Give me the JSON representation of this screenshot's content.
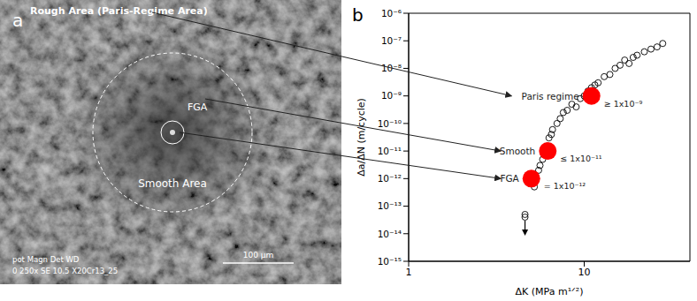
{
  "image": {
    "label": "a",
    "rough": "Rough Area (Paris-Regime Area)",
    "fga": "FGA",
    "smooth": "Smooth Area",
    "scale_bar": "100 μm",
    "info_header": "pot Magn  Det WD",
    "info_values": "0  250x  SE  10.5 X20Cr13_25"
  },
  "chart_data": {
    "panel_label": "b",
    "type": "scatter",
    "log": true,
    "x_label": "ΔK (MPa m¹ᐟ²)",
    "y_label": "Δa/ΔN (m/cycle)",
    "xlim": [
      1,
      40
    ],
    "xticks": [
      1,
      10
    ],
    "ylim": [
      1e-15,
      1e-06
    ],
    "yticks": [
      {
        "value": 1e-15,
        "label": "10⁻¹⁵"
      },
      {
        "value": 1e-14,
        "label": "10⁻¹⁴"
      },
      {
        "value": 1e-13,
        "label": "10⁻¹³"
      },
      {
        "value": 1e-12,
        "label": "10⁻¹²"
      },
      {
        "value": 1e-11,
        "label": "10⁻¹¹"
      },
      {
        "value": 1e-10,
        "label": "10⁻¹⁰"
      },
      {
        "value": 1e-09,
        "label": "10⁻⁹"
      },
      {
        "value": 1e-08,
        "label": "10⁻⁸"
      },
      {
        "value": 1e-07,
        "label": "10⁻⁷"
      },
      {
        "value": 1e-06,
        "label": "10⁻⁶"
      }
    ],
    "series": [
      {
        "color": "#000000",
        "marker": "open_circle",
        "x": [
          5.2,
          5.3,
          5.5,
          5.6,
          5.8,
          5.9,
          6.1,
          6.3,
          6.5,
          6.6,
          7.0,
          7.3,
          7.6,
          8.0,
          8.5,
          9.0,
          9.5,
          10.0,
          10.5,
          11.0,
          11.5,
          12.0,
          13.0,
          14.0,
          15.0,
          16.0,
          17.0,
          18.0,
          19.0,
          20.0,
          22.0,
          24.0,
          26.0,
          28.0
        ],
        "values": [
          5e-13,
          1e-12,
          2e-12,
          3e-12,
          5e-12,
          8e-12,
          1.5e-11,
          3e-11,
          4e-11,
          6e-11,
          1e-10,
          1.5e-10,
          2.5e-10,
          3e-10,
          5e-10,
          4e-10,
          8e-10,
          1e-09,
          1.5e-09,
          2e-09,
          2.5e-09,
          3e-09,
          5e-09,
          6e-09,
          1e-08,
          1.3e-08,
          2e-08,
          1.5e-08,
          2.5e-08,
          3e-08,
          4e-08,
          5e-08,
          6e-08,
          8e-08
        ]
      },
      {
        "color": "#000000",
        "marker": "open_circle_arrow",
        "x": [
          4.6,
          4.6
        ],
        "values": [
          5e-14,
          4e-14
        ]
      }
    ],
    "annotations": [
      {
        "label": "Paris regime",
        "x": 11,
        "y": 1e-09,
        "value_label": "≥ 1x10⁻⁹",
        "color": "#ff0000"
      },
      {
        "label": "Smooth",
        "x": 6.2,
        "y": 1e-11,
        "value_label": "≤ 1x10⁻¹¹",
        "color": "#ff0000"
      },
      {
        "label": "FGA",
        "x": 5,
        "y": 1e-12,
        "value_label": "= 1x10⁻¹²",
        "color": "#ff0000"
      }
    ]
  }
}
